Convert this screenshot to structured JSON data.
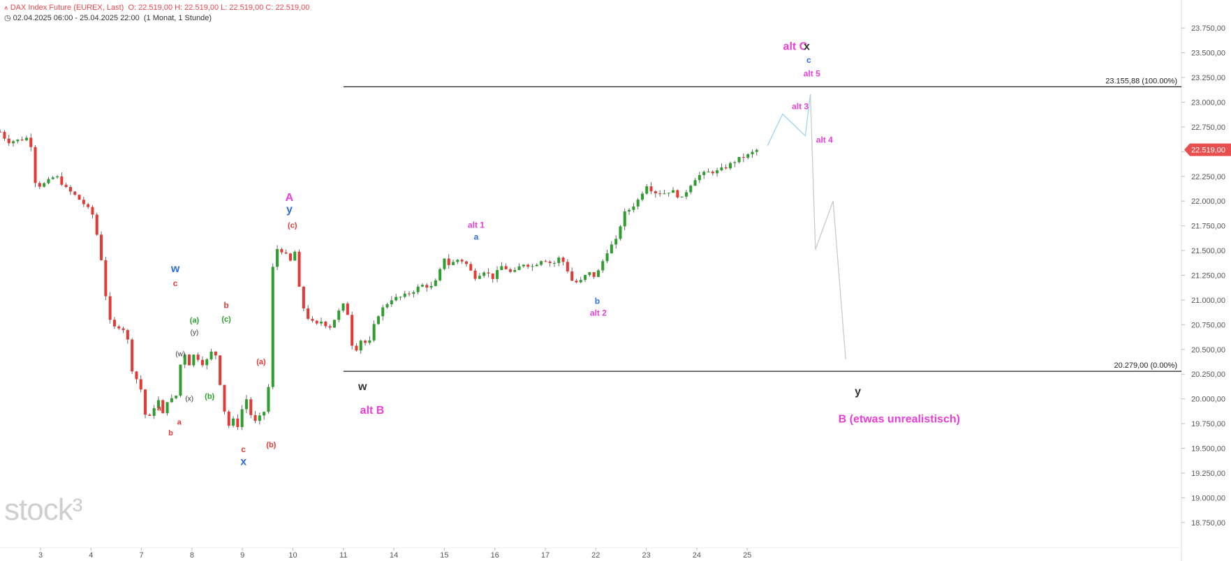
{
  "header": {
    "title": "DAX Index Future (EUREX, Last)",
    "ohlc": "O: 22.519,00   H: 22.519,00   L: 22.519,00   C: 22.519,00",
    "range": "02.04.2025 06:00 - 25.04.2025 22:00",
    "interval": "(1 Monat, 1 Stunde)"
  },
  "watermark": "stock³",
  "colors": {
    "up": "#2e9e2e",
    "down": "#e53935",
    "magenta": "#e83fd8",
    "blue": "#2f6fdc",
    "green": "#27a127",
    "dark": "#333333",
    "projection_blue": "#9ad6f0",
    "projection_grey": "#c9c9c9",
    "price_tag": "#e85050"
  },
  "chart_data": {
    "type": "candlestick",
    "y_axis": {
      "min": 18650,
      "max": 23850,
      "ticks": [
        "23.750,00",
        "23.500,00",
        "23.250,00",
        "23.000,00",
        "22.750,00",
        "22.500,00",
        "22.250,00",
        "22.000,00",
        "21.750,00",
        "21.500,00",
        "21.250,00",
        "21.000,00",
        "20.750,00",
        "20.500,00",
        "20.250,00",
        "20.000,00",
        "19.750,00",
        "19.500,00",
        "19.250,00",
        "19.000,00",
        "18.750,00"
      ],
      "tick_values": [
        23750,
        23500,
        23250,
        23000,
        22750,
        22500,
        22250,
        22000,
        21750,
        21500,
        21250,
        21000,
        20750,
        20500,
        20250,
        20000,
        19750,
        19500,
        19250,
        19000,
        18750
      ]
    },
    "x_axis": {
      "labels": [
        "3",
        "4",
        "7",
        "8",
        "9",
        "10",
        "11",
        "14",
        "15",
        "16",
        "17",
        "22",
        "23",
        "24",
        "25"
      ],
      "label_positions": [
        1,
        2,
        3,
        4,
        5,
        6,
        7,
        8,
        9,
        10,
        11,
        12,
        13,
        14,
        15
      ]
    },
    "last_price": {
      "value": 22519,
      "label": "22.519,00"
    },
    "levels": [
      {
        "value": 23155.88,
        "label": "23.155,88 (100.00%)",
        "x_from": 7.0
      },
      {
        "value": 20279,
        "label": "20.279,00 (0.00%)",
        "x_from": 7.0
      }
    ],
    "price_path": [
      [
        0.2,
        22700
      ],
      [
        0.35,
        22600
      ],
      [
        0.6,
        22620
      ],
      [
        0.8,
        22650
      ],
      [
        0.85,
        22220
      ],
      [
        1.0,
        22150
      ],
      [
        1.15,
        22200
      ],
      [
        1.3,
        22260
      ],
      [
        1.5,
        22130
      ],
      [
        1.7,
        22050
      ],
      [
        1.9,
        21950
      ],
      [
        2.05,
        21850
      ],
      [
        2.2,
        21430
      ],
      [
        2.35,
        20800
      ],
      [
        2.5,
        20700
      ],
      [
        2.6,
        20760
      ],
      [
        2.75,
        20560
      ],
      [
        2.85,
        20150
      ],
      [
        2.95,
        20250
      ],
      [
        3.05,
        19850
      ],
      [
        3.2,
        19800
      ],
      [
        3.3,
        20040
      ],
      [
        3.45,
        19800
      ],
      [
        3.55,
        20100
      ],
      [
        3.65,
        19880
      ],
      [
        3.75,
        20310
      ],
      [
        3.85,
        20470
      ],
      [
        3.95,
        20350
      ],
      [
        4.05,
        20460
      ],
      [
        4.15,
        20390
      ],
      [
        4.25,
        20340
      ],
      [
        4.35,
        20450
      ],
      [
        4.45,
        20510
      ],
      [
        4.55,
        20180
      ],
      [
        4.7,
        19700
      ],
      [
        4.8,
        19800
      ],
      [
        4.9,
        19720
      ],
      [
        5.0,
        19910
      ],
      [
        5.1,
        20020
      ],
      [
        5.2,
        19750
      ],
      [
        5.3,
        19780
      ],
      [
        5.4,
        19860
      ],
      [
        5.5,
        19900
      ],
      [
        5.6,
        21320
      ],
      [
        5.7,
        21540
      ],
      [
        5.85,
        21460
      ],
      [
        5.95,
        21390
      ],
      [
        6.05,
        21500
      ],
      [
        6.15,
        20990
      ],
      [
        6.3,
        20820
      ],
      [
        6.45,
        20740
      ],
      [
        6.6,
        20800
      ],
      [
        6.7,
        20700
      ],
      [
        6.85,
        20830
      ],
      [
        6.95,
        20920
      ],
      [
        7.05,
        20980
      ],
      [
        7.2,
        20450
      ],
      [
        7.35,
        20600
      ],
      [
        7.5,
        20540
      ],
      [
        7.65,
        20820
      ],
      [
        7.8,
        20930
      ],
      [
        7.95,
        21010
      ],
      [
        8.15,
        21030
      ],
      [
        8.35,
        21080
      ],
      [
        8.55,
        21150
      ],
      [
        8.75,
        21130
      ],
      [
        8.85,
        21200
      ],
      [
        9.0,
        21430
      ],
      [
        9.1,
        21350
      ],
      [
        9.25,
        21410
      ],
      [
        9.4,
        21390
      ],
      [
        9.6,
        21230
      ],
      [
        9.8,
        21300
      ],
      [
        9.95,
        21220
      ],
      [
        10.15,
        21350
      ],
      [
        10.35,
        21260
      ],
      [
        10.55,
        21370
      ],
      [
        10.75,
        21340
      ],
      [
        10.95,
        21420
      ],
      [
        11.15,
        21360
      ],
      [
        11.3,
        21440
      ],
      [
        11.45,
        21290
      ],
      [
        11.55,
        21170
      ],
      [
        11.7,
        21190
      ],
      [
        11.85,
        21280
      ],
      [
        12.0,
        21230
      ],
      [
        12.1,
        21350
      ],
      [
        12.25,
        21520
      ],
      [
        12.4,
        21600
      ],
      [
        12.55,
        21870
      ],
      [
        12.7,
        21930
      ],
      [
        12.85,
        22020
      ],
      [
        13.0,
        22170
      ],
      [
        13.15,
        22090
      ],
      [
        13.35,
        22080
      ],
      [
        13.5,
        22110
      ],
      [
        13.7,
        22020
      ],
      [
        13.85,
        22150
      ],
      [
        14.0,
        22250
      ],
      [
        14.2,
        22290
      ],
      [
        14.4,
        22300
      ],
      [
        14.6,
        22350
      ],
      [
        14.8,
        22420
      ],
      [
        15.0,
        22460
      ],
      [
        15.2,
        22519
      ]
    ],
    "projections": [
      {
        "color": "blue",
        "points": [
          [
            15.4,
            22560
          ],
          [
            15.7,
            22880
          ],
          [
            16.15,
            22660
          ],
          [
            16.25,
            23080
          ]
        ]
      },
      {
        "color": "grey",
        "points": [
          [
            16.25,
            23080
          ],
          [
            16.35,
            21510
          ],
          [
            16.7,
            22000
          ],
          [
            16.95,
            20400
          ]
        ]
      }
    ],
    "annotations": [
      {
        "text": "w",
        "x": 3.67,
        "y": 21280,
        "color": "blue",
        "size": 16,
        "bold": true
      },
      {
        "text": "c",
        "x": 3.67,
        "y": 21140,
        "color": "red",
        "size": 12,
        "bold": true
      },
      {
        "text": "(a)",
        "x": 4.05,
        "y": 20770,
        "color": "green",
        "size": 11,
        "bold": true
      },
      {
        "text": "(y)",
        "x": 4.05,
        "y": 20650,
        "color": "dark",
        "size": 10,
        "bold": false
      },
      {
        "text": "(w)",
        "x": 3.77,
        "y": 20430,
        "color": "dark",
        "size": 10,
        "bold": false
      },
      {
        "text": "(x)",
        "x": 3.95,
        "y": 19980,
        "color": "dark",
        "size": 10,
        "bold": false
      },
      {
        "text": "(b)",
        "x": 4.35,
        "y": 20000,
        "color": "green",
        "size": 11,
        "bold": true
      },
      {
        "text": "b",
        "x": 4.68,
        "y": 20920,
        "color": "red",
        "size": 12,
        "bold": true
      },
      {
        "text": "(c)",
        "x": 4.68,
        "y": 20780,
        "color": "green",
        "size": 11,
        "bold": true
      },
      {
        "text": "a",
        "x": 3.35,
        "y": 19880,
        "color": "red",
        "size": 11,
        "bold": true
      },
      {
        "text": "a",
        "x": 3.75,
        "y": 19740,
        "color": "red",
        "size": 11,
        "bold": true
      },
      {
        "text": "b",
        "x": 3.58,
        "y": 19630,
        "color": "red",
        "size": 11,
        "bold": true
      },
      {
        "text": "(a)",
        "x": 5.37,
        "y": 20350,
        "color": "red",
        "size": 11,
        "bold": true
      },
      {
        "text": "c",
        "x": 5.02,
        "y": 19460,
        "color": "red",
        "size": 12,
        "bold": true
      },
      {
        "text": "x",
        "x": 5.02,
        "y": 19330,
        "color": "blue",
        "size": 16,
        "bold": true
      },
      {
        "text": "(b)",
        "x": 5.57,
        "y": 19510,
        "color": "red",
        "size": 11,
        "bold": true
      },
      {
        "text": "A",
        "x": 5.93,
        "y": 22000,
        "color": "magenta",
        "size": 16,
        "bold": true
      },
      {
        "text": "y",
        "x": 5.93,
        "y": 21880,
        "color": "blue",
        "size": 16,
        "bold": true
      },
      {
        "text": "(c)",
        "x": 5.99,
        "y": 21730,
        "color": "red",
        "size": 11,
        "bold": true
      },
      {
        "text": "w",
        "x": 7.38,
        "y": 20090,
        "color": "dark",
        "size": 16,
        "bold": true
      },
      {
        "text": "alt B",
        "x": 7.57,
        "y": 19850,
        "color": "magenta",
        "size": 16,
        "bold": true
      },
      {
        "text": "alt 1",
        "x": 9.63,
        "y": 21730,
        "color": "magenta",
        "size": 12,
        "bold": true
      },
      {
        "text": "a",
        "x": 9.63,
        "y": 21610,
        "color": "blue",
        "size": 12,
        "bold": true
      },
      {
        "text": "b",
        "x": 12.03,
        "y": 20960,
        "color": "blue",
        "size": 12,
        "bold": true
      },
      {
        "text": "alt 2",
        "x": 12.05,
        "y": 20840,
        "color": "magenta",
        "size": 12,
        "bold": true
      },
      {
        "text": "alt C",
        "x": 15.95,
        "y": 23530,
        "color": "magenta",
        "size": 16,
        "bold": true
      },
      {
        "text": "x",
        "x": 16.18,
        "y": 23530,
        "color": "dark",
        "size": 16,
        "bold": true
      },
      {
        "text": "c",
        "x": 16.22,
        "y": 23400,
        "color": "blue",
        "size": 12,
        "bold": true
      },
      {
        "text": "alt 5",
        "x": 16.28,
        "y": 23260,
        "color": "magenta",
        "size": 12,
        "bold": true
      },
      {
        "text": "alt 3",
        "x": 16.05,
        "y": 22930,
        "color": "magenta",
        "size": 12,
        "bold": true
      },
      {
        "text": "alt 4",
        "x": 16.53,
        "y": 22590,
        "color": "magenta",
        "size": 12,
        "bold": true
      },
      {
        "text": "y",
        "x": 17.19,
        "y": 20040,
        "color": "dark",
        "size": 16,
        "bold": true
      },
      {
        "text": "B (etwas unrealistisch)",
        "x": 18.01,
        "y": 19760,
        "color": "magenta",
        "size": 16,
        "bold": true
      }
    ]
  }
}
